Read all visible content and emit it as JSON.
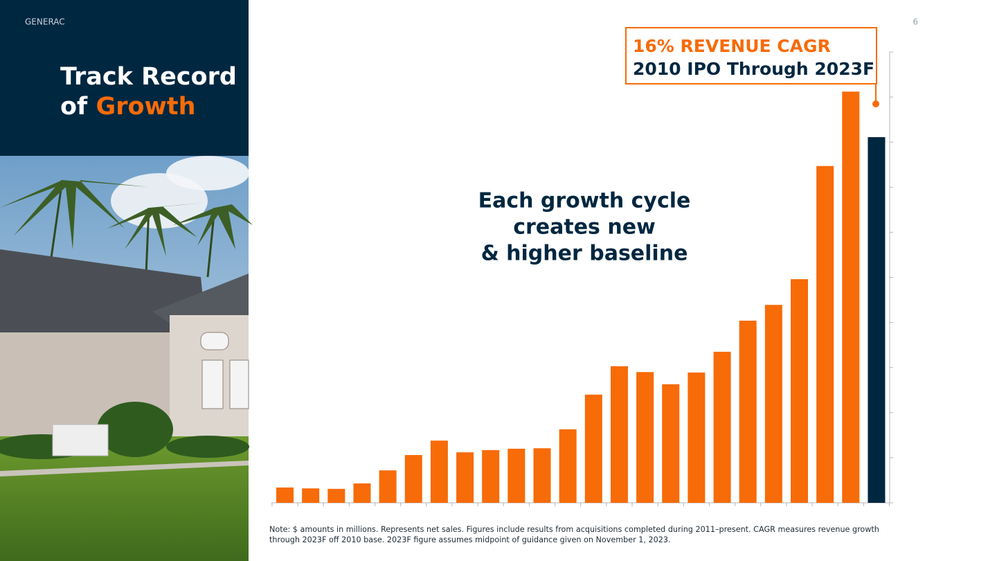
{
  "header": {
    "brand": "GENERAC",
    "page_number": "6"
  },
  "title": {
    "line1": "Track Record",
    "line2_prefix": "of",
    "line2_highlight": "Growth"
  },
  "chart_data": {
    "type": "bar",
    "categories": [
      null,
      null,
      null,
      null,
      null,
      null,
      null,
      null,
      null,
      null,
      null,
      null,
      null,
      null,
      null,
      null,
      null,
      null,
      null,
      null,
      null,
      null,
      null,
      null
    ],
    "values": [
      0.34,
      0.32,
      0.31,
      0.43,
      0.72,
      1.06,
      1.38,
      1.12,
      1.17,
      1.2,
      1.21,
      1.63,
      2.4,
      3.03,
      2.9,
      2.63,
      2.89,
      3.35,
      4.04,
      4.39,
      4.96,
      7.47,
      9.12,
      8.11
    ],
    "colors": [
      "#f76b08",
      "#f76b08",
      "#f76b08",
      "#f76b08",
      "#f76b08",
      "#f76b08",
      "#f76b08",
      "#f76b08",
      "#f76b08",
      "#f76b08",
      "#f76b08",
      "#f76b08",
      "#f76b08",
      "#f76b08",
      "#f76b08",
      "#f76b08",
      "#f76b08",
      "#f76b08",
      "#f76b08",
      "#f76b08",
      "#f76b08",
      "#f76b08",
      "#f76b08",
      "#002740"
    ],
    "ylim": [
      0,
      10
    ],
    "yticks": [
      0,
      1,
      2,
      3,
      4,
      5,
      6,
      7,
      8,
      9,
      10
    ],
    "grid": false,
    "annotation": [
      "Each growth cycle",
      "creates new",
      "& higher baseline"
    ],
    "callout": {
      "highlight": "16% REVENUE CAGR",
      "text": "2010 IPO Through 2023F"
    }
  },
  "note": [
    "Note: $ amounts in millions. Represents net sales. Figures include results from acquisitions completed during 2011–present. CAGR measures revenue growth",
    "through 2023F off 2010 base. 2023F figure assumes midpoint of guidance given on November 1, 2023."
  ]
}
